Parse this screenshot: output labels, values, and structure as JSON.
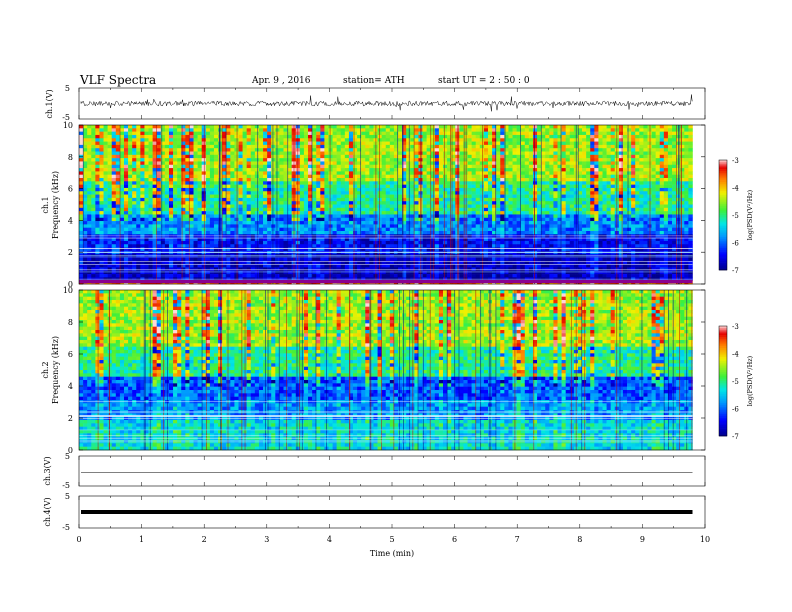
{
  "header": {
    "title": "VLF  Spectra",
    "date": "Apr. 9  , 2016",
    "station": "station= ATH",
    "start": "start  UT  =   2  : 50 : 0"
  },
  "chart_data": [
    {
      "type": "line",
      "panel": "ch1-waveform",
      "ylabel": "ch.1(V)",
      "yticks": [
        "5",
        "-5"
      ],
      "ylim": [
        -5,
        5
      ],
      "xlim": [
        0,
        10
      ],
      "level": 0
    },
    {
      "type": "heatmap",
      "panel": "ch1-spectrogram",
      "ylabel": "Frequency (kHz)",
      "channel_label": "ch.1",
      "yticks": [
        "0",
        "2",
        "4",
        "6",
        "8",
        "10"
      ],
      "ylim": [
        0,
        10
      ],
      "xlim": [
        0,
        9.8
      ],
      "bands": [
        {
          "from": 0,
          "to": 0.3,
          "level": -3.5
        },
        {
          "from": 0.3,
          "to": 1.9,
          "level": -6.8
        },
        {
          "from": 1.9,
          "to": 3.2,
          "level": -6.5
        },
        {
          "from": 3.2,
          "to": 4.4,
          "level": -5.9
        },
        {
          "from": 4.4,
          "to": 6.5,
          "level": -5.1
        },
        {
          "from": 6.5,
          "to": 10,
          "level": -4.5
        }
      ],
      "colorbar": {
        "label": "log(PSD(V²/Hz)",
        "ticks": [
          "-3",
          "-4",
          "-5",
          "-6",
          "-7"
        ],
        "range": [
          -7,
          -3
        ]
      }
    },
    {
      "type": "heatmap",
      "panel": "ch2-spectrogram",
      "ylabel": "Frequency (kHz)",
      "channel_label": "ch.2",
      "yticks": [
        "0",
        "2",
        "4",
        "6",
        "8",
        "10"
      ],
      "ylim": [
        0,
        10
      ],
      "xlim": [
        0,
        9.8
      ],
      "bands": [
        {
          "from": 0,
          "to": 1.8,
          "level": -5.4
        },
        {
          "from": 1.8,
          "to": 3.2,
          "level": -5.8
        },
        {
          "from": 3.2,
          "to": 4.5,
          "level": -6.1
        },
        {
          "from": 4.5,
          "to": 6.5,
          "level": -5.1
        },
        {
          "from": 6.5,
          "to": 10,
          "level": -4.5
        }
      ],
      "colorbar": {
        "label": "log(PSD(V²/Hz)",
        "ticks": [
          "-3",
          "-4",
          "-5",
          "-6",
          "-7"
        ],
        "range": [
          -7,
          -3
        ]
      }
    },
    {
      "type": "line",
      "panel": "ch3-waveform",
      "ylabel": "ch.3(V)",
      "yticks": [
        "5",
        "-5"
      ],
      "ylim": [
        -5,
        5
      ],
      "xlim": [
        0,
        10
      ],
      "level": -0.5
    },
    {
      "type": "line",
      "panel": "ch4-waveform",
      "ylabel": "ch.4(V)",
      "yticks": [
        "5",
        "-5"
      ],
      "ylim": [
        -5,
        5
      ],
      "xlim": [
        0,
        10
      ],
      "level": 0
    }
  ],
  "xaxis": {
    "label": "Time  (min)",
    "ticks": [
      "0",
      "1",
      "2",
      "3",
      "4",
      "5",
      "6",
      "7",
      "8",
      "9",
      "10"
    ]
  }
}
